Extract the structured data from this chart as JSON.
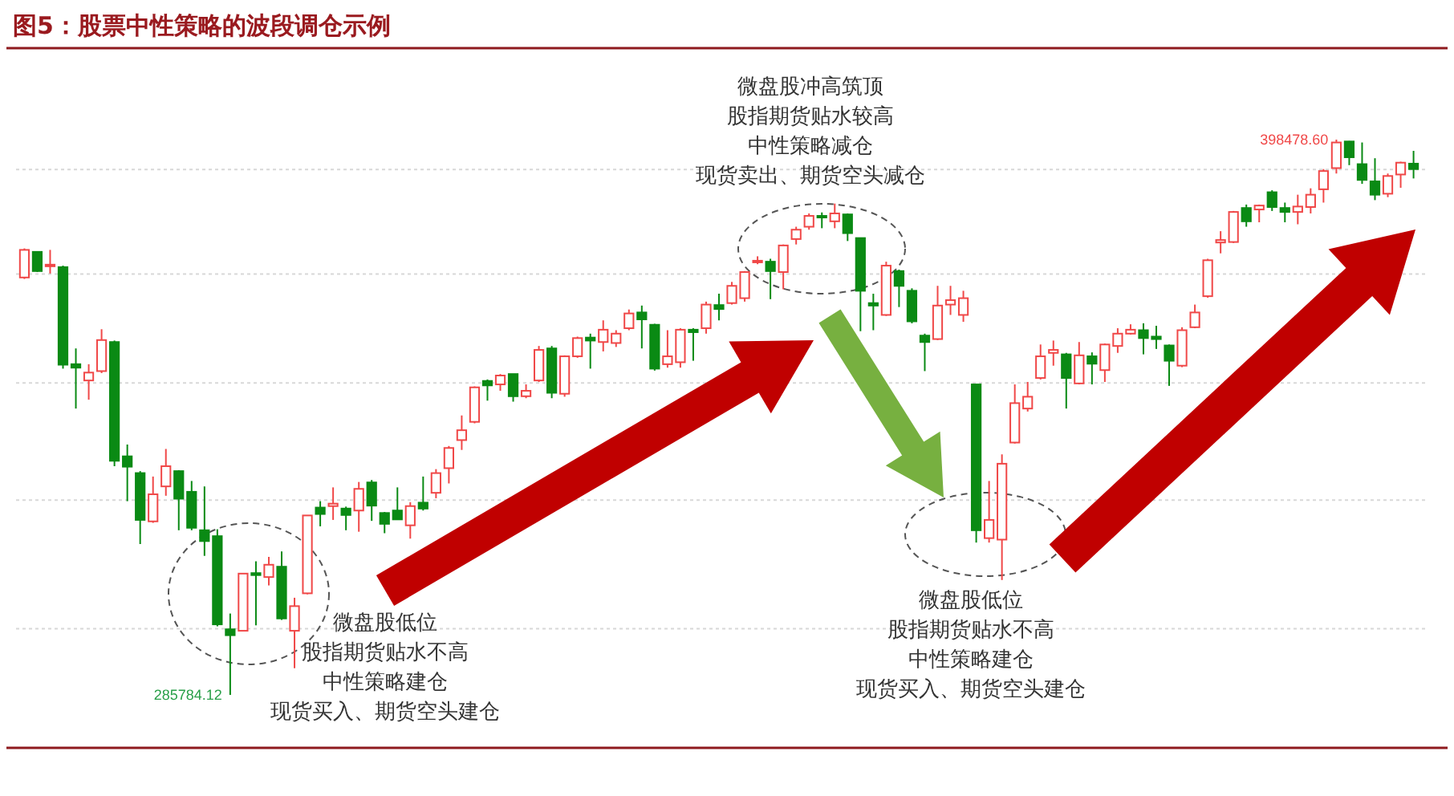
{
  "chart_data": {
    "type": "candlestick",
    "title": "图5：股票中性策略的波段调仓示例",
    "categories": [
      null,
      null,
      null,
      null,
      null,
      null,
      null,
      null,
      null,
      null,
      null,
      null,
      null,
      null,
      null,
      null,
      null,
      null,
      null,
      null,
      null,
      null,
      null,
      null,
      null,
      null,
      null,
      null,
      null,
      null,
      null,
      null,
      null,
      null,
      null,
      null,
      null,
      null,
      null,
      null,
      null,
      null,
      null,
      null,
      null,
      null,
      null,
      null,
      null,
      null,
      null,
      null,
      null,
      null,
      null,
      null,
      null,
      null,
      null,
      null,
      null,
      null,
      null,
      null,
      null,
      null,
      null,
      null,
      null,
      null,
      null,
      null,
      null,
      null,
      null,
      null,
      null,
      null,
      null,
      null,
      null,
      null,
      null,
      null,
      null,
      null,
      null,
      null,
      null,
      null,
      null,
      null,
      null,
      null,
      null,
      null,
      null,
      null,
      null,
      null,
      null,
      null,
      null,
      null,
      null,
      null,
      null,
      null,
      null
    ],
    "ohlc": [
      [
        370500,
        376400,
        370200,
        376100
      ],
      [
        375700,
        375700,
        371600,
        371800
      ],
      [
        372900,
        376100,
        371300,
        373100
      ],
      [
        372600,
        372900,
        352000,
        352800
      ],
      [
        352900,
        356100,
        343900,
        352200
      ],
      [
        349600,
        352900,
        345700,
        351200
      ],
      [
        351500,
        360000,
        351100,
        357800
      ],
      [
        357400,
        357700,
        332200,
        333300
      ],
      [
        334200,
        336600,
        325100,
        332100
      ],
      [
        330800,
        331200,
        316400,
        321300
      ],
      [
        321000,
        330100,
        320700,
        326500
      ],
      [
        328100,
        335700,
        326200,
        332200
      ],
      [
        331200,
        331400,
        319200,
        325600
      ],
      [
        327000,
        329200,
        319200,
        319700
      ],
      [
        319200,
        328100,
        314000,
        317000
      ],
      [
        318000,
        319400,
        299700,
        300100
      ],
      [
        299100,
        302300,
        285784.12,
        297900
      ],
      [
        298800,
        310400,
        298800,
        310400
      ],
      [
        310500,
        312900,
        299900,
        310100
      ],
      [
        309700,
        313800,
        308000,
        312200
      ],
      [
        311800,
        314900,
        301000,
        301300
      ],
      [
        298800,
        305500,
        291200,
        303800
      ],
      [
        306400,
        322200,
        306200,
        322200
      ],
      [
        323800,
        325100,
        320000,
        322500
      ],
      [
        324100,
        327900,
        321300,
        324600
      ],
      [
        323600,
        324000,
        319200,
        322300
      ],
      [
        323200,
        329000,
        318900,
        327600
      ],
      [
        328900,
        329400,
        321100,
        324200
      ],
      [
        322700,
        322900,
        318600,
        320500
      ],
      [
        323200,
        327900,
        321300,
        321400
      ],
      [
        320200,
        324900,
        317500,
        324100
      ],
      [
        324800,
        330100,
        323200,
        323600
      ],
      [
        326800,
        331600,
        325700,
        330800
      ],
      [
        331800,
        336300,
        328700,
        335900
      ],
      [
        337500,
        342500,
        335500,
        339500
      ],
      [
        341200,
        348400,
        340900,
        348200
      ],
      [
        349500,
        349800,
        345500,
        348600
      ],
      [
        348800,
        350900,
        347500,
        350600
      ],
      [
        350900,
        350900,
        345300,
        346400
      ],
      [
        346400,
        348800,
        346000,
        347500
      ],
      [
        349600,
        356600,
        349300,
        355800
      ],
      [
        356100,
        356600,
        346000,
        347100
      ],
      [
        346900,
        354700,
        346300,
        354500
      ],
      [
        354500,
        358500,
        354200,
        358200
      ],
      [
        358300,
        359100,
        352000,
        357700
      ],
      [
        357400,
        361800,
        355500,
        359900
      ],
      [
        357200,
        359800,
        356400,
        359100
      ],
      [
        360200,
        364000,
        359800,
        363200
      ],
      [
        363400,
        364800,
        356100,
        362000
      ],
      [
        360900,
        361100,
        351600,
        352000
      ],
      [
        352900,
        359800,
        352200,
        354500
      ],
      [
        353300,
        360200,
        352200,
        359900
      ],
      [
        359900,
        360200,
        353600,
        359400
      ],
      [
        360200,
        365600,
        359100,
        365000
      ],
      [
        364900,
        367200,
        361800,
        364100
      ],
      [
        365300,
        369600,
        365000,
        368800
      ],
      [
        366300,
        371800,
        365600,
        371600
      ],
      [
        373600,
        374800,
        373200,
        373900
      ],
      [
        373700,
        374300,
        366100,
        371800
      ],
      [
        371600,
        377200,
        368100,
        377000
      ],
      [
        378300,
        380800,
        377200,
        380200
      ],
      [
        380800,
        383500,
        380200,
        383000
      ],
      [
        383000,
        383700,
        380500,
        382700
      ],
      [
        381900,
        385500,
        380500,
        383500
      ],
      [
        383300,
        383500,
        377900,
        379500
      ],
      [
        378500,
        378500,
        359600,
        367800
      ],
      [
        365300,
        367200,
        359800,
        364800
      ],
      [
        362900,
        373700,
        362700,
        372900
      ],
      [
        371800,
        372100,
        364500,
        368800
      ],
      [
        367800,
        368300,
        361200,
        361600
      ],
      [
        358700,
        359100,
        351500,
        357400
      ],
      [
        358000,
        368800,
        357800,
        364800
      ],
      [
        365000,
        368800,
        362900,
        365900
      ],
      [
        362900,
        367800,
        361500,
        366300
      ],
      [
        348800,
        348800,
        316700,
        319200
      ],
      [
        317600,
        329200,
        316700,
        321300
      ],
      [
        317300,
        334600,
        309100,
        332700
      ],
      [
        337000,
        348800,
        336800,
        345000
      ],
      [
        343900,
        349300,
        343300,
        346300
      ],
      [
        350100,
        356900,
        349800,
        354500
      ],
      [
        355200,
        357700,
        352600,
        355800
      ],
      [
        354900,
        355200,
        343900,
        350100
      ],
      [
        349000,
        357400,
        348800,
        354700
      ],
      [
        354500,
        355300,
        348800,
        353000
      ],
      [
        351700,
        357100,
        349300,
        356900
      ],
      [
        356600,
        360200,
        355200,
        359100
      ],
      [
        359100,
        361000,
        358900,
        359900
      ],
      [
        359800,
        361200,
        354900,
        358200
      ],
      [
        358500,
        360700,
        356000,
        358000
      ],
      [
        356700,
        356900,
        348500,
        353600
      ],
      [
        352600,
        360400,
        352300,
        359800
      ],
      [
        360400,
        365000,
        360200,
        363400
      ],
      [
        366700,
        374300,
        366400,
        374000
      ],
      [
        377600,
        379900,
        375400,
        378100
      ],
      [
        377700,
        384000,
        377500,
        383800
      ],
      [
        384600,
        385300,
        380800,
        381900
      ],
      [
        384300,
        385300,
        381700,
        385100
      ],
      [
        387800,
        388200,
        384000,
        384800
      ],
      [
        384600,
        385700,
        381700,
        383800
      ],
      [
        383800,
        387300,
        381300,
        384900
      ],
      [
        384800,
        388600,
        383500,
        387300
      ],
      [
        388400,
        392500,
        385700,
        392100
      ],
      [
        392700,
        398478.6,
        391600,
        397900
      ],
      [
        398100,
        398200,
        393300,
        394900
      ],
      [
        393500,
        397900,
        389500,
        390300
      ],
      [
        390000,
        394700,
        386200,
        387300
      ],
      [
        387500,
        391600,
        386800,
        391100
      ],
      [
        391400,
        394000,
        388700,
        393800
      ],
      [
        393600,
        396200,
        390600,
        392500
      ]
    ],
    "yticks": [
      {
        "value": 299200,
        "label": null
      },
      {
        "value": 325300,
        "label": null
      },
      {
        "value": 349100,
        "label": null
      },
      {
        "value": 371200,
        "label": null
      },
      {
        "value": 392400,
        "label": null
      }
    ],
    "grid": "y",
    "annotations": [
      "398478.60",
      "285784.12",
      "微盘股冲高筑顶",
      "股指期货贴水较高",
      "中性策略减仓",
      "现货卖出、期货空头减仓",
      "微盘股低位",
      "股指期货贴水不高",
      "中性策略建仓",
      "现货买入、期货空头建仓",
      "微盘股低位",
      "股指期货贴水不高",
      "中性策略建仓",
      "现货买入、期货空头建仓"
    ]
  }
}
